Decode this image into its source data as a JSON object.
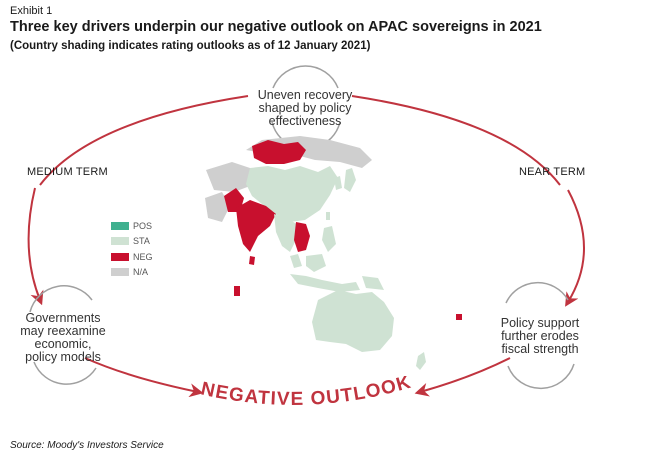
{
  "header": {
    "exhibit": "Exhibit 1",
    "title": "Three key drivers underpin our negative outlook on APAC sovereigns in 2021",
    "subtitle": "(Country shading indicates rating outlooks as of 12 January 2021)"
  },
  "terms": {
    "medium": "MEDIUM TERM",
    "near": "NEAR TERM"
  },
  "drivers": {
    "top": [
      "Uneven recovery",
      "shaped by policy",
      "effectiveness"
    ],
    "left": [
      "Governments",
      "may reexamine",
      "economic,",
      "policy models"
    ],
    "right": [
      "Policy support",
      "further erodes",
      "fiscal strength"
    ]
  },
  "center_label": "NEGATIVE OUTLOOK",
  "legend": [
    {
      "label": "POS",
      "color": "#3fb08f"
    },
    {
      "label": "STA",
      "color": "#cfe2d3"
    },
    {
      "label": "NEG",
      "color": "#c8102e"
    },
    {
      "label": "N/A",
      "color": "#cfcfcf"
    }
  ],
  "colors": {
    "arrow": "#c0343f",
    "arc_grey": "#a0a0a0",
    "map_sta": "#cfe2d3",
    "map_neg": "#c8102e",
    "map_na": "#cfcfcf"
  },
  "source": "Source: Moody's Investors Service"
}
